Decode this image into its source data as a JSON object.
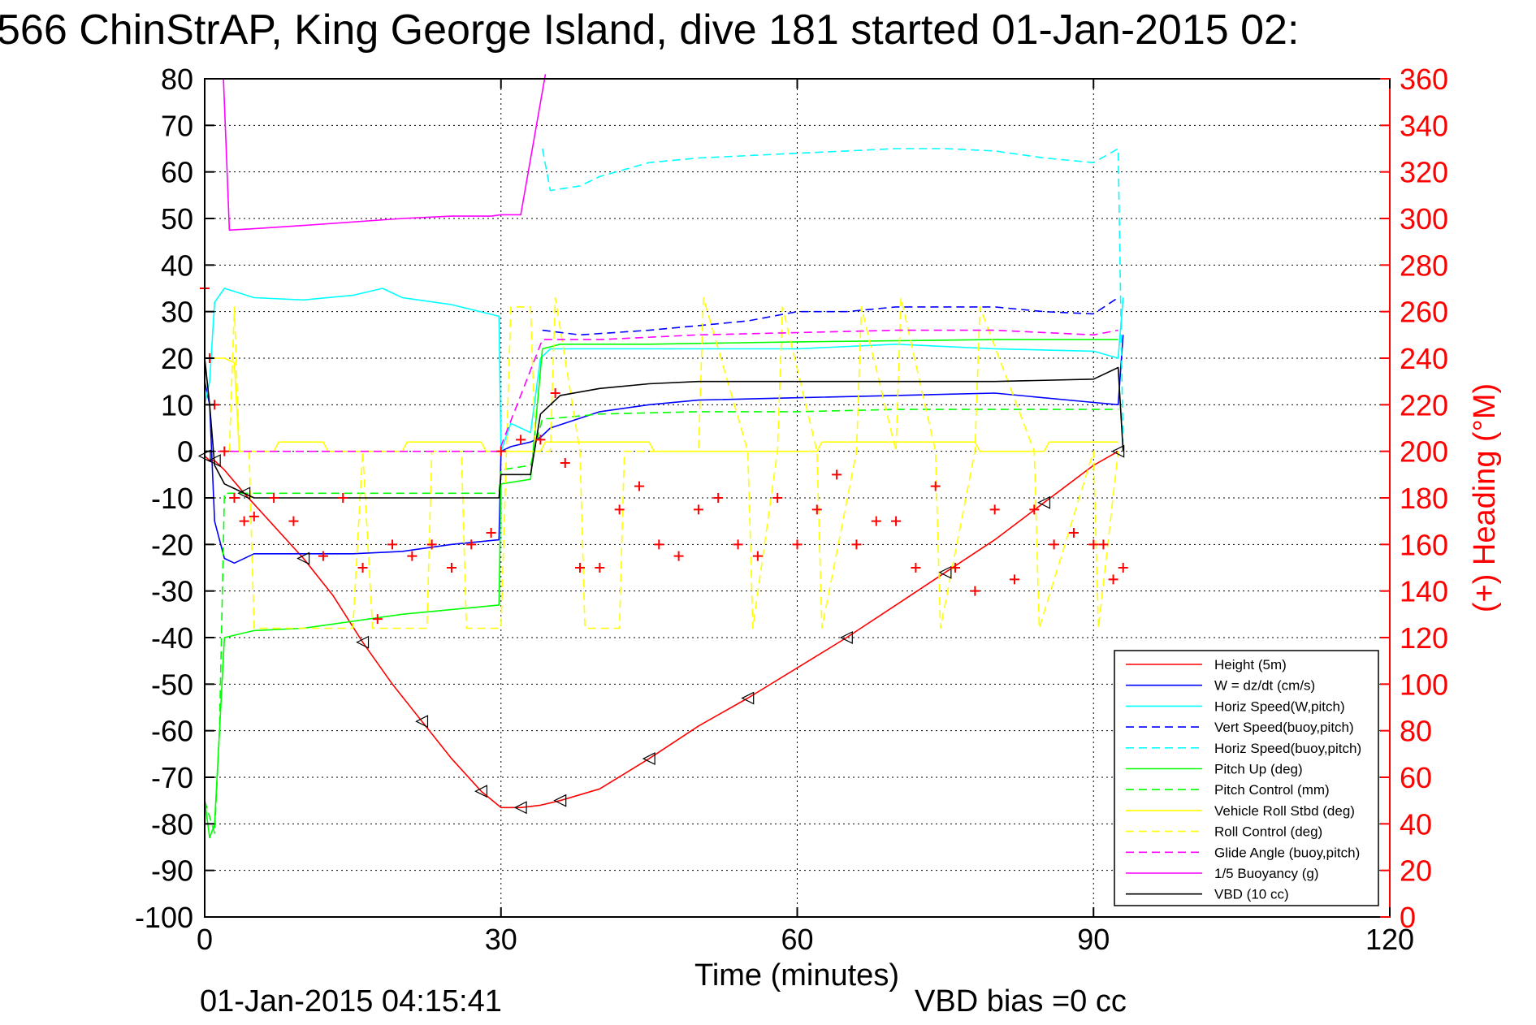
{
  "header": {
    "title": "566 ChinStrAP, King George Island, dive 181 started 01-Jan-2015 02:"
  },
  "footer": {
    "timestamp": "01-Jan-2015 04:15:41",
    "vbd_bias": "VBD bias =0 cc"
  },
  "chart_data": {
    "type": "line",
    "xlabel": "Time (minutes)",
    "ylabel": "",
    "ylabel_right": "(+) Heading (°M)",
    "xlim": [
      0,
      120
    ],
    "ylim": [
      -100,
      80
    ],
    "ylim_right": [
      0,
      360
    ],
    "x_ticks": [
      0,
      30,
      60,
      90,
      120
    ],
    "y_ticks": [
      80,
      70,
      60,
      50,
      40,
      30,
      20,
      10,
      0,
      -10,
      -20,
      -30,
      -40,
      -50,
      -60,
      -70,
      -80,
      -90,
      -100
    ],
    "y_right_ticks": [
      360,
      340,
      320,
      300,
      280,
      260,
      240,
      220,
      200,
      180,
      160,
      140,
      120,
      100,
      80,
      60,
      40,
      20,
      0
    ],
    "grid": true,
    "legend_position": "bottom-right",
    "series": [
      {
        "name": "Height (5m)",
        "color": "#ff0000",
        "style": "solid",
        "marker": "triangle",
        "x": [
          0,
          0.5,
          1,
          2,
          4,
          7,
          10,
          13,
          16,
          19,
          22,
          25,
          28,
          30,
          32,
          34,
          36,
          40,
          45,
          50,
          55,
          60,
          65,
          70,
          75,
          80,
          85,
          90,
          92.5
        ],
        "y": [
          -1,
          -2,
          -2,
          -4,
          -9,
          -16,
          -23,
          -31,
          -41,
          -50,
          -58,
          -66,
          -73,
          -76.5,
          -76.5,
          -76,
          -75,
          -72.5,
          -66,
          -59,
          -53,
          -46.5,
          -40,
          -33,
          -26,
          -19,
          -11,
          -3,
          0
        ]
      },
      {
        "name": "W = dz/dt (cm/s)",
        "color": "#0000ff",
        "style": "solid",
        "x": [
          0,
          0.5,
          1,
          2,
          3,
          5,
          10,
          15,
          20,
          25,
          29.8,
          30,
          31,
          33,
          34,
          35,
          40,
          45,
          50,
          60,
          70,
          80,
          90,
          92.5,
          93
        ],
        "y": [
          15,
          10,
          -15,
          -23,
          -24,
          -22,
          -22,
          -22,
          -21.5,
          -20,
          -19,
          0,
          1,
          2,
          3,
          5,
          8.5,
          10,
          11,
          11.5,
          12,
          12.5,
          10.5,
          10,
          25
        ]
      },
      {
        "name": "Horiz Speed(W,pitch)",
        "color": "#00ffff",
        "style": "solid",
        "x": [
          0,
          0.5,
          1,
          2,
          5,
          10,
          15,
          18,
          20,
          25,
          29.8,
          30,
          31,
          33,
          34,
          35,
          40,
          50,
          60,
          70,
          80,
          90,
          92.5,
          93
        ],
        "y": [
          10,
          15,
          32,
          35,
          33,
          32.5,
          33.5,
          35,
          33,
          31.5,
          29,
          0,
          6,
          4,
          20,
          22,
          22,
          22,
          22,
          23,
          22,
          21.5,
          20,
          33
        ]
      },
      {
        "name": "Vert Speed(buoy,pitch)",
        "color": "#0000ff",
        "style": "dashed",
        "x": [
          34.2,
          38,
          45,
          50,
          55,
          60,
          65,
          70,
          75,
          80,
          85,
          90,
          92.5
        ],
        "y": [
          26,
          25,
          26,
          27,
          28,
          30,
          30,
          31,
          31,
          31,
          30,
          29.5,
          33
        ]
      },
      {
        "name": "Horiz Speed(buoy,pitch)",
        "color": "#00ffff",
        "style": "dashed",
        "x": [
          34.2,
          35,
          38,
          40,
          45,
          50,
          55,
          60,
          65,
          70,
          75,
          80,
          85,
          90,
          92.5,
          93
        ],
        "y": [
          65,
          56,
          57,
          59,
          62,
          63,
          63.5,
          64,
          64.5,
          65,
          65,
          64.5,
          63,
          62,
          65,
          0
        ]
      },
      {
        "name": "Pitch Up (deg)",
        "color": "#00ff00",
        "style": "solid",
        "x": [
          0,
          0.5,
          1,
          2,
          5,
          10,
          20,
          29.8,
          30,
          33,
          34.2,
          36,
          45,
          60,
          80,
          92.5
        ],
        "y": [
          -75,
          -83,
          -80,
          -40,
          -38.5,
          -38,
          -35,
          -33,
          -7,
          -6,
          22,
          23,
          23,
          23.5,
          24,
          24
        ]
      },
      {
        "name": "Pitch Control (mm)",
        "color": "#00ff00",
        "style": "dashed",
        "x": [
          0,
          1,
          1.5,
          2,
          10,
          20,
          29.8,
          30,
          33,
          34.2,
          35,
          40,
          50,
          60,
          70,
          80,
          90,
          92.5
        ],
        "y": [
          -75,
          -82,
          -60,
          -9,
          -9,
          -9,
          -9,
          -4,
          -3,
          7,
          7,
          8,
          8.5,
          8.5,
          9,
          9,
          9,
          9
        ]
      },
      {
        "name": "Vehicle Roll Stbd (deg)",
        "color": "#ffff00",
        "style": "solid",
        "x": [
          0,
          2,
          3,
          3.5,
          7,
          7.5,
          12,
          12.5,
          20,
          20.5,
          28,
          28.5,
          30,
          34,
          34.5,
          45,
          45.5,
          62,
          62.5,
          78,
          78.5,
          85,
          85.5,
          92.5
        ],
        "y": [
          20,
          20,
          19,
          0,
          0,
          2,
          2,
          0,
          0,
          2,
          2,
          0,
          0,
          0,
          2,
          2,
          0,
          0,
          2,
          2,
          0,
          0,
          2,
          2
        ]
      },
      {
        "name": "Roll Control (deg)",
        "color": "#ffff00",
        "style": "dashed",
        "x": [
          2.5,
          3,
          3.5,
          4.5,
          5,
          10,
          15,
          16,
          17,
          22.5,
          23,
          26,
          26.5,
          30,
          31,
          33,
          33.5,
          35,
          35.5,
          38,
          38.5,
          42,
          42.5,
          50,
          50.5,
          55,
          55.5,
          58,
          58.5,
          62,
          62.5,
          66,
          66.5,
          70,
          70.5,
          74,
          74.5,
          78,
          78.5,
          84,
          84.5,
          90,
          90.5,
          92.5
        ],
        "y": [
          0,
          31,
          0,
          0,
          -38,
          -38,
          -38,
          0,
          -38,
          -38,
          0,
          0,
          -38,
          -38,
          31,
          31,
          0,
          0,
          33,
          0,
          -38,
          -38,
          0,
          0,
          33,
          0,
          -38,
          0,
          31,
          0,
          -38,
          0,
          31,
          0,
          33,
          0,
          -38,
          0,
          31,
          0,
          -38,
          0,
          -38,
          0
        ]
      },
      {
        "name": "Glide Angle (buoy,pitch)",
        "color": "#ff00ff",
        "style": "dashed",
        "x": [
          0,
          5,
          10,
          20,
          29.8,
          34.2,
          40,
          50,
          60,
          70,
          80,
          90,
          92.5
        ],
        "y": [
          0,
          0,
          0,
          0,
          0,
          24,
          24,
          25,
          25.5,
          26,
          26,
          25,
          26
        ]
      },
      {
        "name": "1/5 Buoyancy (g)",
        "color": "#ff00ff",
        "style": "solid",
        "x": [
          1.9,
          2.5,
          5,
          10,
          20,
          25,
          29,
          30,
          32,
          34.5
        ],
        "y": [
          80,
          47.5,
          47.8,
          48.5,
          50,
          50.5,
          50.5,
          50.8,
          50.8,
          81
        ]
      },
      {
        "name": "VBD (10 cc)",
        "color": "#000000",
        "style": "solid",
        "x": [
          0,
          0.5,
          1,
          2,
          3,
          4,
          5,
          10,
          20,
          29.8,
          30,
          31,
          33,
          34,
          36,
          40,
          45,
          50,
          55,
          60,
          70,
          80,
          90,
          92.5,
          93
        ],
        "y": [
          20,
          10,
          -3,
          -7,
          -8,
          -9,
          -10,
          -10,
          -10,
          -10,
          -5,
          -5,
          -5,
          8,
          12,
          13.5,
          14.5,
          15,
          15,
          15,
          15,
          15,
          15.5,
          18,
          0
        ]
      },
      {
        "name": "(+) Heading (°M)",
        "color": "#ff0000",
        "style": "marker",
        "marker": "plus",
        "axis": "right",
        "x": [
          0,
          0.5,
          1,
          2,
          3,
          4,
          5,
          7,
          9,
          12,
          14,
          16,
          17.5,
          19,
          21,
          23,
          25,
          27,
          29,
          30,
          32,
          34,
          35.5,
          36.5,
          38,
          40,
          42,
          44,
          46,
          48,
          50,
          52,
          54,
          56,
          58,
          60,
          62,
          64,
          66,
          68,
          70,
          72,
          74,
          76,
          78,
          80,
          82,
          84,
          86,
          88,
          90,
          91,
          92,
          93
        ],
        "y": [
          270,
          240,
          220,
          200,
          180,
          170,
          172,
          180,
          170,
          155,
          180,
          150,
          128,
          160,
          155,
          160,
          150,
          160,
          165,
          200,
          205,
          205,
          225,
          195,
          150,
          150,
          175,
          185,
          160,
          155,
          175,
          180,
          160,
          155,
          180,
          160,
          175,
          190,
          160,
          170,
          170,
          150,
          185,
          150,
          140,
          175,
          145,
          175,
          160,
          165,
          160,
          160,
          145,
          150
        ]
      }
    ]
  }
}
